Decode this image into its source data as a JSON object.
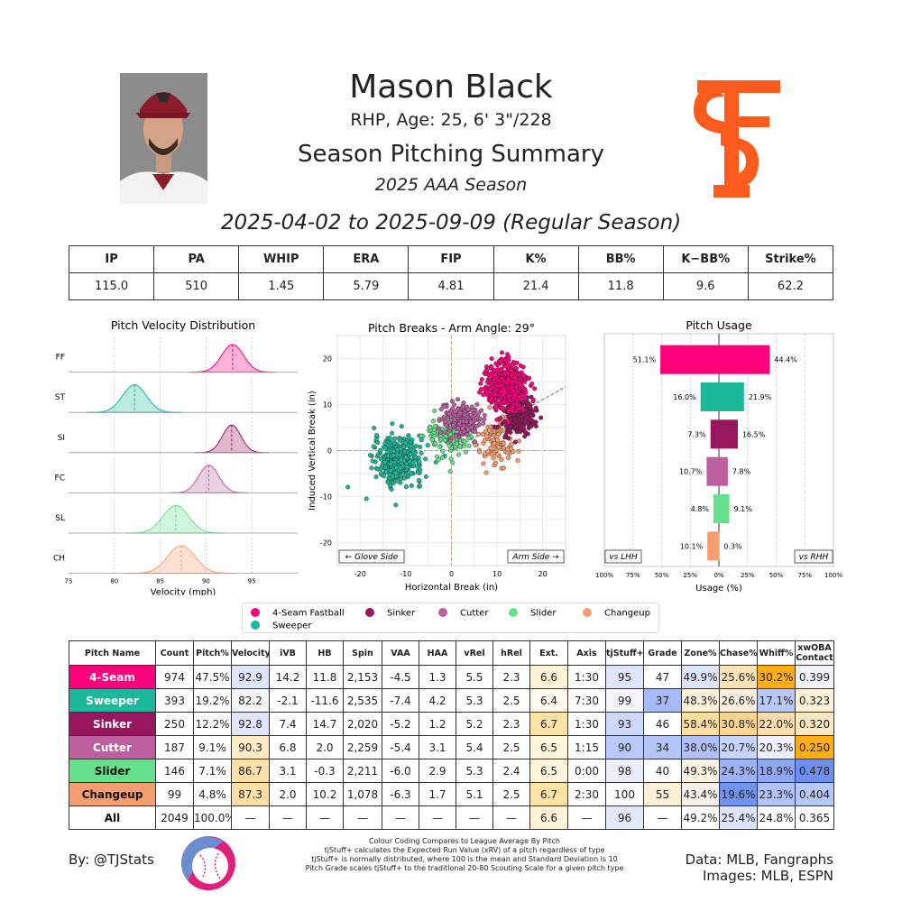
{
  "header": {
    "name": "Mason Black",
    "bio": "RHP, Age: 25, 6' 3\"/228",
    "title": "Season Pitching Summary",
    "season": "2025 AAA Season",
    "dates": "2025-04-02 to 2025-09-09 (Regular Season)"
  },
  "season_stats": {
    "headers": [
      "IP",
      "PA",
      "WHIP",
      "ERA",
      "FIP",
      "K%",
      "BB%",
      "K−BB%",
      "Strike%"
    ],
    "values": [
      "115.0",
      "510",
      "1.45",
      "5.79",
      "4.81",
      "21.4",
      "11.8",
      "9.6",
      "62.2"
    ]
  },
  "colors": {
    "ff": "#FF007D",
    "st": "#1BB999",
    "si": "#98165D",
    "fc": "#BE5FA0",
    "sl": "#67E18D",
    "ch": "#F79E70",
    "sf_orange": "#FD5A1E"
  },
  "chart_data": [
    {
      "type": "area",
      "title": "Pitch Velocity Distribution",
      "xlabel": "Velocity (mph)",
      "ylabel": "",
      "xlim": [
        75,
        100
      ],
      "x_ticks": [
        "75",
        "80",
        "85",
        "90",
        "95"
      ],
      "series": [
        {
          "name": "FF",
          "mean": 92.9,
          "sd": 1.2,
          "color": "#FF007D"
        },
        {
          "name": "ST",
          "mean": 82.2,
          "sd": 1.3,
          "color": "#1BB999"
        },
        {
          "name": "SI",
          "mean": 92.8,
          "sd": 1.0,
          "color": "#98165D"
        },
        {
          "name": "FC",
          "mean": 90.3,
          "sd": 1.1,
          "color": "#BE5FA0"
        },
        {
          "name": "SL",
          "mean": 86.7,
          "sd": 1.4,
          "color": "#67E18D"
        },
        {
          "name": "CH",
          "mean": 87.3,
          "sd": 1.5,
          "color": "#F79E70"
        }
      ]
    },
    {
      "type": "scatter",
      "title": "Pitch Breaks - Arm Angle: 29°",
      "xlabel": "Horizontal Break (in)",
      "ylabel": "Induced Vertical Break (in)",
      "xlim": [
        -25,
        25
      ],
      "ylim": [
        -25,
        25
      ],
      "x_ticks": [
        "-20",
        "-10",
        "0",
        "10",
        "20"
      ],
      "y_ticks": [
        "-20",
        "-10",
        "0",
        "10",
        "20"
      ],
      "arm_angle": 29,
      "annotations": [
        "← Glove Side",
        "Arm Side →"
      ],
      "clusters": [
        {
          "name": "4-Seam Fastball",
          "x": 11.8,
          "y": 14.2,
          "sx": 2.2,
          "sy": 2.5,
          "n": 500,
          "color": "#FF007D"
        },
        {
          "name": "Sweeper",
          "x": -11.6,
          "y": -2.1,
          "sx": 2.6,
          "sy": 2.4,
          "n": 393,
          "color": "#1BB999"
        },
        {
          "name": "Sinker",
          "x": 14.7,
          "y": 7.4,
          "sx": 1.8,
          "sy": 2.0,
          "n": 250,
          "color": "#98165D"
        },
        {
          "name": "Cutter",
          "x": 2.0,
          "y": 6.8,
          "sx": 2.0,
          "sy": 1.8,
          "n": 187,
          "color": "#BE5FA0"
        },
        {
          "name": "Slider",
          "x": -0.3,
          "y": 3.1,
          "sx": 2.6,
          "sy": 2.4,
          "n": 146,
          "color": "#67E18D"
        },
        {
          "name": "Changeup",
          "x": 10.2,
          "y": 2.0,
          "sx": 2.0,
          "sy": 2.6,
          "n": 99,
          "color": "#F79E70"
        }
      ]
    },
    {
      "type": "bar",
      "title": "Pitch Usage",
      "xlabel": "Usage (%)",
      "xlim": [
        -100,
        100
      ],
      "x_ticks": [
        "100%",
        "75%",
        "50%",
        "25%",
        "0%",
        "25%",
        "50%",
        "75%",
        "100%"
      ],
      "left_label": "vs LHH",
      "right_label": "vs RHH",
      "categories": [
        "4-Seam Fastball",
        "Sweeper",
        "Sinker",
        "Cutter",
        "Slider",
        "Changeup"
      ],
      "series": [
        {
          "name": "vs LHH",
          "values": [
            51.1,
            16.0,
            7.3,
            10.7,
            4.8,
            10.1
          ]
        },
        {
          "name": "vs RHH",
          "values": [
            44.4,
            21.9,
            16.5,
            7.8,
            9.1,
            0.3
          ]
        }
      ],
      "labels_lhh": [
        "51.1%",
        "16.0%",
        "7.3%",
        "10.7%",
        "4.8%",
        "10.1%"
      ],
      "labels_rhh": [
        "44.4%",
        "21.9%",
        "16.5%",
        "7.8%",
        "9.1%",
        "0.3%"
      ],
      "colors": [
        "#FF007D",
        "#1BB999",
        "#98165D",
        "#BE5FA0",
        "#67E18D",
        "#F79E70"
      ]
    }
  ],
  "legend": {
    "items": [
      {
        "label": "4-Seam Fastball",
        "color": "#FF007D"
      },
      {
        "label": "Sinker",
        "color": "#98165D"
      },
      {
        "label": "Cutter",
        "color": "#BE5FA0"
      },
      {
        "label": "Slider",
        "color": "#67E18D"
      },
      {
        "label": "Changeup",
        "color": "#F79E70"
      },
      {
        "label": "Sweeper",
        "color": "#1BB999"
      }
    ]
  },
  "pitch_table": {
    "headers": [
      "Pitch Name",
      "Count",
      "Pitch%",
      "Velocity",
      "iVB",
      "HB",
      "Spin",
      "VAA",
      "HAA",
      "vRel",
      "hRel",
      "Ext.",
      "Axis",
      "tjStuff+",
      "Grade",
      "Zone%",
      "Chase%",
      "Whiff%",
      "xwOBA\nContact"
    ],
    "rows": [
      {
        "name": "4-Seam",
        "color": "#FF007D",
        "text": "#ffffff",
        "cells": [
          "974",
          "47.5%",
          "92.9",
          "14.2",
          "11.8",
          "2,153",
          "-4.5",
          "1.3",
          "5.5",
          "2.3",
          "6.6",
          "1:30",
          "95",
          "47",
          "49.9%",
          "25.6%",
          "30.2%",
          "0.399"
        ],
        "bg": [
          "",
          "",
          "#dde6fb",
          "",
          "",
          "",
          "",
          "",
          "",
          "",
          "#fff2d6",
          "",
          "#dfe6fb",
          "",
          "#dde4fb",
          "#fde3b5",
          "#ffad14",
          "#f3f4fb"
        ]
      },
      {
        "name": "Sweeper",
        "color": "#1BB999",
        "text": "#ffffff",
        "cells": [
          "393",
          "19.2%",
          "82.2",
          "-2.1",
          "-11.6",
          "2,535",
          "-7.4",
          "4.2",
          "5.3",
          "2.5",
          "6.4",
          "7:30",
          "99",
          "37",
          "48.3%",
          "26.6%",
          "17.1%",
          "0.323"
        ],
        "bg": [
          "",
          "",
          "#f4f4f4",
          "",
          "",
          "",
          "",
          "",
          "",
          "",
          "#fffbef",
          "",
          "#f4f4f9",
          "#a7baf7",
          "#fdf0d8",
          "#fbefe0",
          "#b7c8f9",
          "#fdf1d8"
        ]
      },
      {
        "name": "Sinker",
        "color": "#98165D",
        "text": "#ffffff",
        "cells": [
          "250",
          "12.2%",
          "92.8",
          "7.4",
          "14.7",
          "2,020",
          "-5.2",
          "1.2",
          "5.2",
          "2.3",
          "6.7",
          "1:30",
          "93",
          "46",
          "58.4%",
          "30.8%",
          "22.0%",
          "0.320"
        ],
        "bg": [
          "",
          "",
          "#dfe6fb",
          "",
          "",
          "",
          "",
          "",
          "",
          "",
          "#fee3a6",
          "",
          "#cdd9fb",
          "",
          "#fddda0",
          "#fdd592",
          "#fdddaa",
          "#fde8c0"
        ]
      },
      {
        "name": "Cutter",
        "color": "#BE5FA0",
        "text": "#ffffff",
        "cells": [
          "187",
          "9.1%",
          "90.3",
          "6.8",
          "2.0",
          "2,259",
          "-5.4",
          "3.1",
          "5.4",
          "2.5",
          "6.5",
          "1:15",
          "90",
          "34",
          "38.0%",
          "20.7%",
          "20.3%",
          "0.250"
        ],
        "bg": [
          "",
          "",
          "#fdebc6",
          "",
          "",
          "",
          "",
          "",
          "",
          "",
          "#fff4dc",
          "",
          "#b7c8f9",
          "#b4c5f8",
          "#afc1f8",
          "#c6d3fa",
          "#eef0f9",
          "#ffad14"
        ]
      },
      {
        "name": "Slider",
        "color": "#67E18D",
        "text": "#111111",
        "cells": [
          "146",
          "7.1%",
          "86.7",
          "3.1",
          "-0.3",
          "2,211",
          "-6.0",
          "2.9",
          "5.3",
          "2.4",
          "6.5",
          "0:00",
          "98",
          "40",
          "49.3%",
          "24.3%",
          "18.9%",
          "0.478"
        ],
        "bg": [
          "",
          "",
          "#fddfa8",
          "",
          "",
          "",
          "",
          "",
          "",
          "",
          "#fff4dc",
          "",
          "#eceff9",
          "",
          "#fbf2e0",
          "#9cb2f6",
          "#8fa8f4",
          "#6f8ff0"
        ]
      },
      {
        "name": "Changeup",
        "color": "#F79E70",
        "text": "#111111",
        "cells": [
          "99",
          "4.8%",
          "87.3",
          "2.0",
          "10.2",
          "1,078",
          "-6.3",
          "1.7",
          "5.1",
          "2.5",
          "6.7",
          "2:30",
          "100",
          "55",
          "43.4%",
          "19.6%",
          "23.3%",
          "0.404"
        ],
        "bg": [
          "",
          "",
          "#fddea4",
          "",
          "",
          "",
          "",
          "",
          "",
          "",
          "#fee3a6",
          "",
          "#fbfbfb",
          "#fdf0d8",
          "#f6f1ea",
          "#7292f0",
          "#b1c3f8",
          "#b6c7f9"
        ]
      },
      {
        "name": "All",
        "color": "#ffffff",
        "text": "#111111",
        "cells": [
          "2049",
          "100.0%",
          "—",
          "—",
          "—",
          "—",
          "—",
          "—",
          "—",
          "—",
          "6.6",
          "—",
          "96",
          "—",
          "49.2%",
          "25.4%",
          "24.8%",
          "0.365"
        ],
        "bg": [
          "",
          "",
          "",
          "",
          "",
          "",
          "",
          "",
          "",
          "",
          "#fff2d6",
          "",
          "#e2e9fb",
          "",
          "",
          "#dde4fb",
          "",
          ""
        ]
      }
    ]
  },
  "footer": {
    "author": "By: @TJStats",
    "notes": [
      "Colour Coding Compares to League Average By Pitch",
      "tjStuff+ calculates the Expected Run Value (xRV) of a pitch regardless of type",
      "tjStuff+ is normally distributed, where 100 is the mean and Standard Deviation is 10",
      "Pitch Grade scales tjStuff+ to the traditional 20-80 Scouting Scale for a given pitch type"
    ],
    "data_source": "Data: MLB, Fangraphs",
    "images_source": "Images: MLB, ESPN"
  }
}
